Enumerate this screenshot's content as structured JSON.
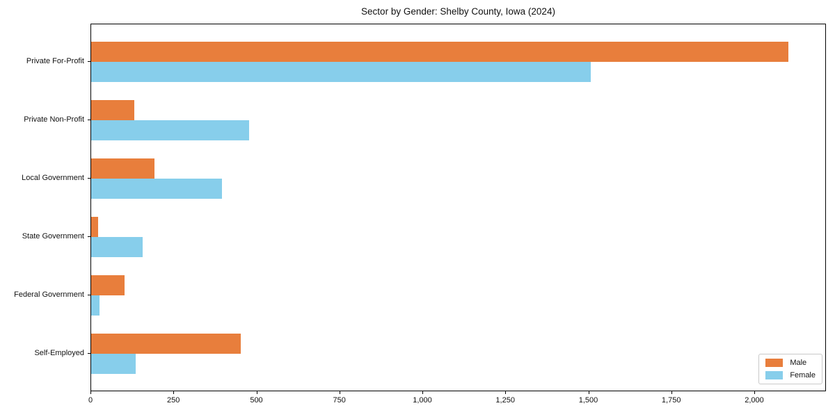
{
  "chart_data": {
    "type": "bar",
    "orientation": "horizontal",
    "title": "Sector by Gender: Shelby County, Iowa (2024)",
    "categories": [
      "Private For-Profit",
      "Private Non-Profit",
      "Local Government",
      "State Government",
      "Federal Government",
      "Self-Employed"
    ],
    "series": [
      {
        "name": "Male",
        "color": "#e87e3c",
        "values": [
          2100,
          130,
          190,
          20,
          100,
          450
        ]
      },
      {
        "name": "Female",
        "color": "#87ceeb",
        "values": [
          1505,
          475,
          395,
          155,
          25,
          135
        ]
      }
    ],
    "xlabel": "",
    "ylabel": "",
    "xlim": [
      0,
      2216
    ],
    "x_ticks": [
      0,
      250,
      500,
      750,
      1000,
      1250,
      1500,
      1750,
      2000
    ],
    "x_tick_labels": [
      "0",
      "250",
      "500",
      "750",
      "1,000",
      "1,250",
      "1,500",
      "1,750",
      "2,000"
    ],
    "grid": false,
    "legend": {
      "position": "lower-right",
      "entries": [
        "Male",
        "Female"
      ]
    },
    "colors": {
      "axis": "#000000",
      "background": "#ffffff",
      "legend_border": "#c9c9c9"
    }
  }
}
